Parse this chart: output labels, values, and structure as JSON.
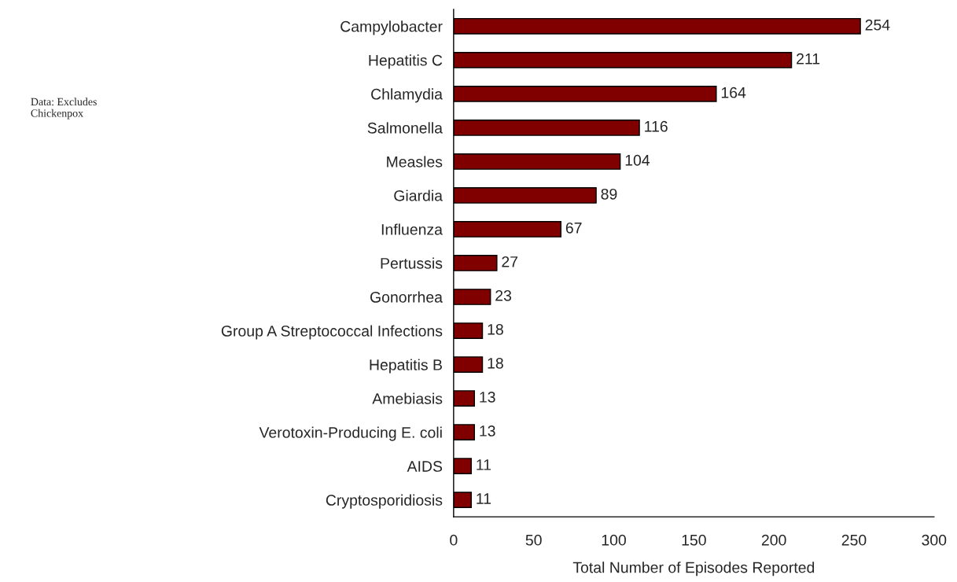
{
  "chart_data": {
    "type": "bar",
    "orientation": "horizontal",
    "categories": [
      "Campylobacter",
      "Hepatitis C",
      "Chlamydia",
      "Salmonella",
      "Measles",
      "Giardia",
      "Influenza",
      "Pertussis",
      "Gonorrhea",
      "Group A Streptococcal Infections",
      "Hepatitis B",
      "Amebiasis",
      "Verotoxin-Producing E. coli",
      "AIDS",
      "Cryptosporidiosis"
    ],
    "values": [
      254,
      211,
      164,
      116,
      104,
      89,
      67,
      27,
      23,
      18,
      18,
      13,
      13,
      11,
      11
    ],
    "color": "#800000",
    "xlim": [
      0,
      300
    ],
    "xticks": [
      0,
      50,
      100,
      150,
      200,
      250,
      300
    ],
    "xlabel": "Total Number of Episodes Reported",
    "data_labels": true,
    "annotations": [
      "Data: Excludes Chickenpox"
    ]
  }
}
